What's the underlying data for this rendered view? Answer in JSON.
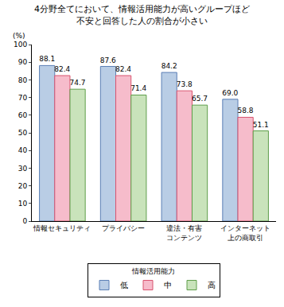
{
  "chart_data": {
    "type": "bar",
    "title": "4分野全てにおいて、情報活用能力が高いグループほど\n不安と回答した人の割合が小さい",
    "y_label": "(%)",
    "legend_title": "情報活用能力",
    "categories": [
      "情報セキュリティ",
      "プライバシー",
      "違法・有害\nコンテンツ",
      "インターネット\n上の商取引"
    ],
    "series": [
      {
        "name": "低",
        "color": "#b9cde5",
        "values": [
          88.1,
          87.6,
          84.2,
          69.0
        ],
        "value_labels": [
          "88.1",
          "87.6",
          "84.2",
          "69.0"
        ]
      },
      {
        "name": "中",
        "color": "#f6bccb",
        "values": [
          82.4,
          82.4,
          73.8,
          58.8
        ],
        "value_labels": [
          "82.4",
          "82.4",
          "73.8",
          "58.8"
        ]
      },
      {
        "name": "高",
        "color": "#c9e3bb",
        "values": [
          74.7,
          71.4,
          65.7,
          51.1
        ],
        "value_labels": [
          "74.7",
          "71.4",
          "65.7",
          "51.1"
        ]
      }
    ],
    "ylim": [
      0,
      100
    ],
    "yticks": [
      0,
      10,
      20,
      30,
      40,
      50,
      60,
      70,
      80,
      90,
      100
    ],
    "grid": false,
    "legend": "bottom",
    "data_labels": true
  }
}
